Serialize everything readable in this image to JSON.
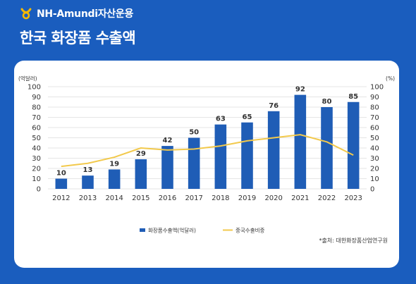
{
  "brand": {
    "name": "NH-Amundi자산운용",
    "logo_icon": "nh-logo-icon"
  },
  "title": "한국 화장품 수출액",
  "source_note": "*출처: 대한화장품산업연구원",
  "colors": {
    "background": "#1a5dbe",
    "bar": "#1f5db6",
    "line": "#f2c94c",
    "logo": "#f5b800"
  },
  "chart_data": {
    "type": "bar",
    "categories": [
      "2012",
      "2013",
      "2014",
      "2015",
      "2016",
      "2017",
      "2018",
      "2019",
      "2020",
      "2021",
      "2022",
      "2023"
    ],
    "series": [
      {
        "name": "화장품수출액(억달러)",
        "type": "bar",
        "axis": "left",
        "values": [
          10,
          13,
          19,
          29,
          42,
          50,
          63,
          65,
          76,
          92,
          80,
          85
        ]
      },
      {
        "name": "중국수출비중",
        "type": "line",
        "axis": "right",
        "values": [
          22,
          25,
          31,
          40,
          38,
          39,
          42,
          47,
          50,
          53,
          46,
          33
        ]
      }
    ],
    "y_left": {
      "label": "(억달러)",
      "ylim": [
        0,
        100
      ],
      "ticks": [
        0,
        10,
        20,
        30,
        40,
        50,
        60,
        70,
        80,
        90,
        100
      ]
    },
    "y_right": {
      "label": "(%)",
      "ylim": [
        0,
        100
      ],
      "ticks": [
        0,
        10,
        20,
        30,
        40,
        50,
        60,
        70,
        80,
        90,
        100
      ]
    },
    "grid": true,
    "legend": "bottom-center",
    "data_labels": true
  }
}
